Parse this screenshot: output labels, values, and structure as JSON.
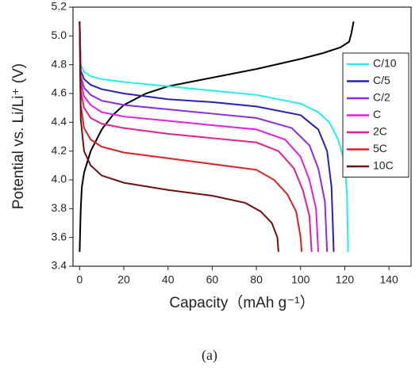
{
  "chart_data": {
    "type": "line",
    "xlabel": "Capacity（mAh g⁻¹）",
    "ylabel": "Potential vs. Li/Li⁺ (V)",
    "caption": "(a)",
    "xlim": [
      -3,
      150
    ],
    "ylim": [
      3.4,
      5.2
    ],
    "xticks": [
      0,
      20,
      40,
      60,
      80,
      100,
      120,
      140
    ],
    "yticks": [
      3.4,
      3.6,
      3.8,
      {
        "value": 4,
        "label": "4.0"
      },
      4.2,
      4.4,
      4.6,
      4.8,
      {
        "value": 5,
        "label": "5.0"
      },
      5.2
    ],
    "legend": "upper right",
    "series": [
      {
        "color": "#000000",
        "x": [
          0,
          0.5,
          1,
          2,
          5,
          10,
          15,
          20,
          30,
          40,
          60,
          80,
          100,
          110,
          118,
          122,
          123,
          124
        ],
        "values": [
          3.5,
          3.8,
          3.95,
          4.05,
          4.2,
          4.35,
          4.45,
          4.52,
          4.6,
          4.65,
          4.71,
          4.77,
          4.84,
          4.88,
          4.92,
          4.96,
          5.02,
          5.1
        ]
      },
      {
        "name": "C/10",
        "color": "#22eeee",
        "x": [
          0,
          0.5,
          2,
          5,
          10,
          20,
          40,
          60,
          80,
          100,
          108,
          113,
          117,
          120,
          121,
          121.5
        ],
        "values": [
          5.1,
          4.8,
          4.75,
          4.72,
          4.7,
          4.68,
          4.65,
          4.62,
          4.59,
          4.53,
          4.47,
          4.4,
          4.28,
          4.12,
          3.9,
          3.5
        ]
      },
      {
        "name": "C/5",
        "color": "#2323b8",
        "x": [
          0,
          0.5,
          2,
          5,
          10,
          20,
          40,
          60,
          80,
          100,
          108,
          112,
          114,
          115
        ],
        "values": [
          5.1,
          4.76,
          4.7,
          4.66,
          4.63,
          4.6,
          4.56,
          4.54,
          4.51,
          4.45,
          4.35,
          4.2,
          3.95,
          3.5
        ]
      },
      {
        "name": "C/2",
        "color": "#8a2be2",
        "x": [
          0,
          0.5,
          2,
          5,
          10,
          20,
          40,
          60,
          80,
          96,
          104,
          108,
          111,
          112
        ],
        "values": [
          5.1,
          4.72,
          4.64,
          4.59,
          4.55,
          4.52,
          4.49,
          4.46,
          4.43,
          4.36,
          4.24,
          4.08,
          3.85,
          3.5
        ]
      },
      {
        "name": "C",
        "color": "#e020e0",
        "x": [
          0,
          0.5,
          2,
          5,
          10,
          20,
          40,
          60,
          80,
          93,
          100,
          104,
          107,
          108
        ],
        "values": [
          5.1,
          4.68,
          4.58,
          4.52,
          4.47,
          4.44,
          4.41,
          4.38,
          4.35,
          4.28,
          4.16,
          4.0,
          3.8,
          3.5
        ]
      },
      {
        "name": "2C",
        "color": "#e0208c",
        "x": [
          0,
          0.5,
          2,
          5,
          10,
          20,
          40,
          60,
          80,
          90,
          97,
          101,
          104,
          105
        ],
        "values": [
          5.1,
          4.62,
          4.5,
          4.43,
          4.39,
          4.36,
          4.32,
          4.29,
          4.26,
          4.2,
          4.08,
          3.93,
          3.75,
          3.5
        ]
      },
      {
        "name": "5C",
        "color": "#dc2020",
        "x": [
          0,
          0.5,
          2,
          5,
          10,
          20,
          40,
          60,
          80,
          88,
          94,
          98,
          100,
          100.5
        ],
        "values": [
          5.1,
          4.52,
          4.36,
          4.28,
          4.23,
          4.19,
          4.15,
          4.11,
          4.07,
          4.0,
          3.9,
          3.78,
          3.6,
          3.5
        ]
      },
      {
        "name": "10C",
        "color": "#6e1010",
        "x": [
          0,
          0.5,
          2,
          5,
          10,
          20,
          40,
          60,
          75,
          82,
          87,
          89.5,
          90
        ],
        "values": [
          5.1,
          4.42,
          4.2,
          4.1,
          4.03,
          3.98,
          3.93,
          3.89,
          3.84,
          3.78,
          3.7,
          3.6,
          3.5
        ]
      }
    ]
  }
}
